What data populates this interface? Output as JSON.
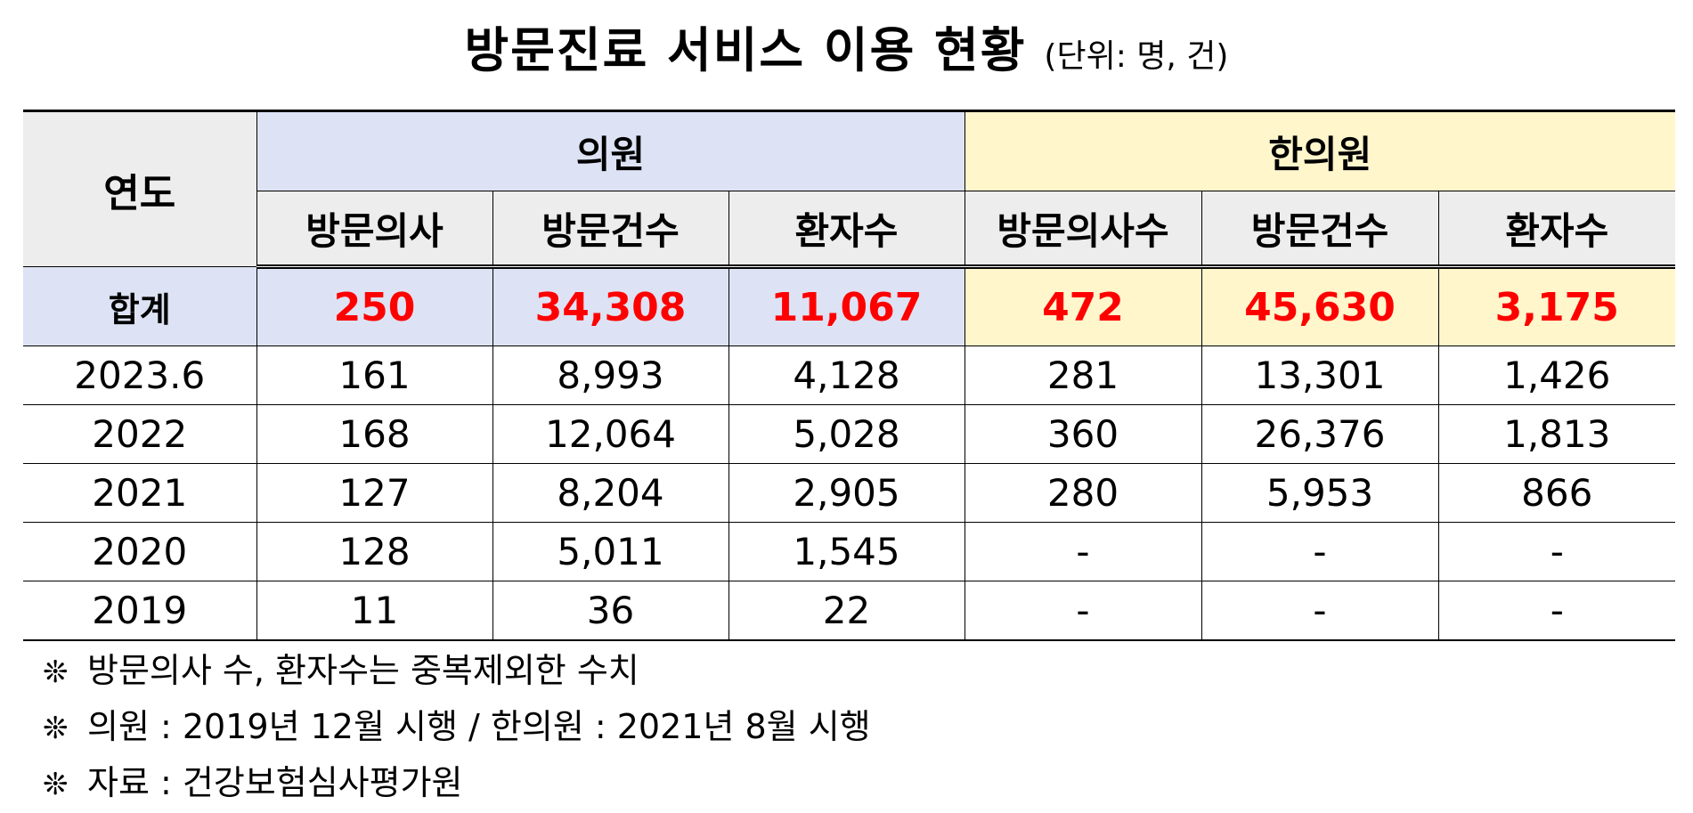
{
  "title": "방문진료 서비스 이용 현황",
  "unit": "(단위: 명, 건)",
  "table": {
    "year_header": "연도",
    "groups": {
      "clinic": "의원",
      "oriental": "한의원"
    },
    "subheaders": {
      "clinic": [
        "방문의사",
        "방문건수",
        "환자수"
      ],
      "oriental": [
        "방문의사수",
        "방문건수",
        "환자수"
      ]
    },
    "total": {
      "label": "합계",
      "clinic": [
        "250",
        "34,308",
        "11,067"
      ],
      "oriental": [
        "472",
        "45,630",
        "3,175"
      ]
    },
    "rows": [
      {
        "year": "2023.6",
        "values": [
          "161",
          "8,993",
          "4,128",
          "281",
          "13,301",
          "1,426"
        ]
      },
      {
        "year": "2022",
        "values": [
          "168",
          "12,064",
          "5,028",
          "360",
          "26,376",
          "1,813"
        ]
      },
      {
        "year": "2021",
        "values": [
          "127",
          "8,204",
          "2,905",
          "280",
          "5,953",
          "866"
        ]
      },
      {
        "year": "2020",
        "values": [
          "128",
          "5,011",
          "1,545",
          "-",
          "-",
          "-"
        ]
      },
      {
        "year": "2019",
        "values": [
          "11",
          "36",
          "22",
          "-",
          "-",
          "-"
        ]
      }
    ]
  },
  "notes": {
    "mark": "❊",
    "lines": [
      "방문의사 수, 환자수는 중복제외한 수치",
      "의원 : 2019년 12월 시행 / 한의원 : 2021년 8월 시행",
      "자료 : 건강보험심사평가원"
    ]
  },
  "colors": {
    "clinic_bg": "#dde3f4",
    "oriental_bg": "#fff6cc",
    "header_gray": "#ededed",
    "total_value": "#ff0000"
  }
}
